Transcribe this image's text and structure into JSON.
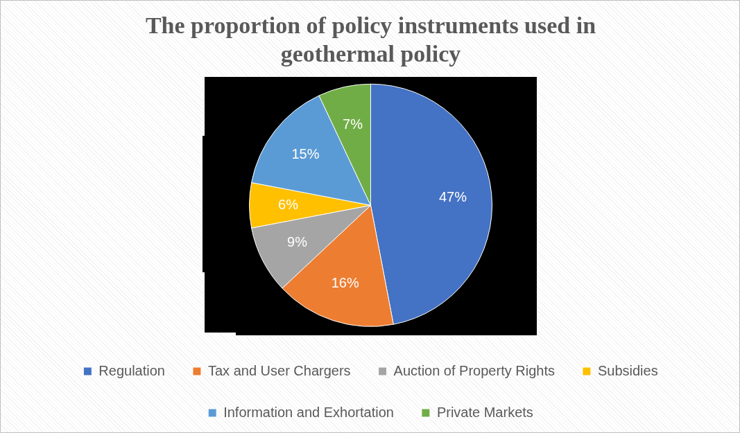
{
  "chart_data": {
    "type": "pie",
    "title": "The proportion of policy instruments used in geothermal policy",
    "categories": [
      "Regulation",
      "Tax and User Chargers",
      "Auction of Property Rights",
      "Subsidies",
      "Information and Exhortation",
      "Private Markets"
    ],
    "values": [
      47,
      16,
      9,
      6,
      15,
      7
    ],
    "colors": [
      "#4472c4",
      "#ed7d31",
      "#a5a5a5",
      "#ffc000",
      "#5b9bd5",
      "#70ad47"
    ],
    "value_labels": [
      "47%",
      "16%",
      "9%",
      "6%",
      "15%",
      "7%"
    ],
    "legend": "bottom"
  }
}
